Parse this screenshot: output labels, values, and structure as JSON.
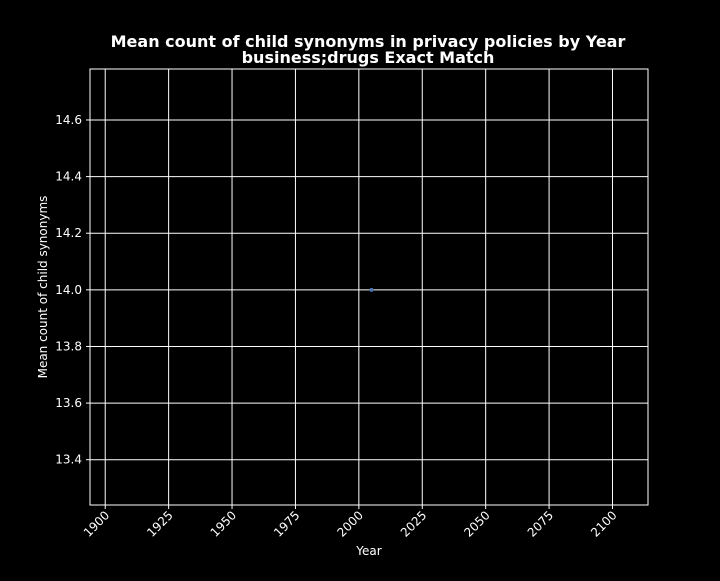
{
  "chart_data": {
    "type": "scatter",
    "title": "Mean count of child synonyms in privacy policies by Year",
    "subtitle": "business;drugs Exact Match",
    "xlabel": "Year",
    "ylabel": "Mean count of child synonyms",
    "xlim": [
      1894,
      2114
    ],
    "ylim": [
      13.24,
      14.78
    ],
    "x_ticks": [
      1900,
      1925,
      1950,
      1975,
      2000,
      2025,
      2050,
      2075,
      2100
    ],
    "y_ticks": [
      13.4,
      13.6,
      13.8,
      14.0,
      14.2,
      14.4,
      14.6
    ],
    "grid": true,
    "series": [
      {
        "x": [
          2005
        ],
        "y": [
          14.0
        ]
      }
    ],
    "colors": {
      "background": "#000000",
      "foreground": "#ffffff",
      "point": "#4c72b0"
    }
  }
}
